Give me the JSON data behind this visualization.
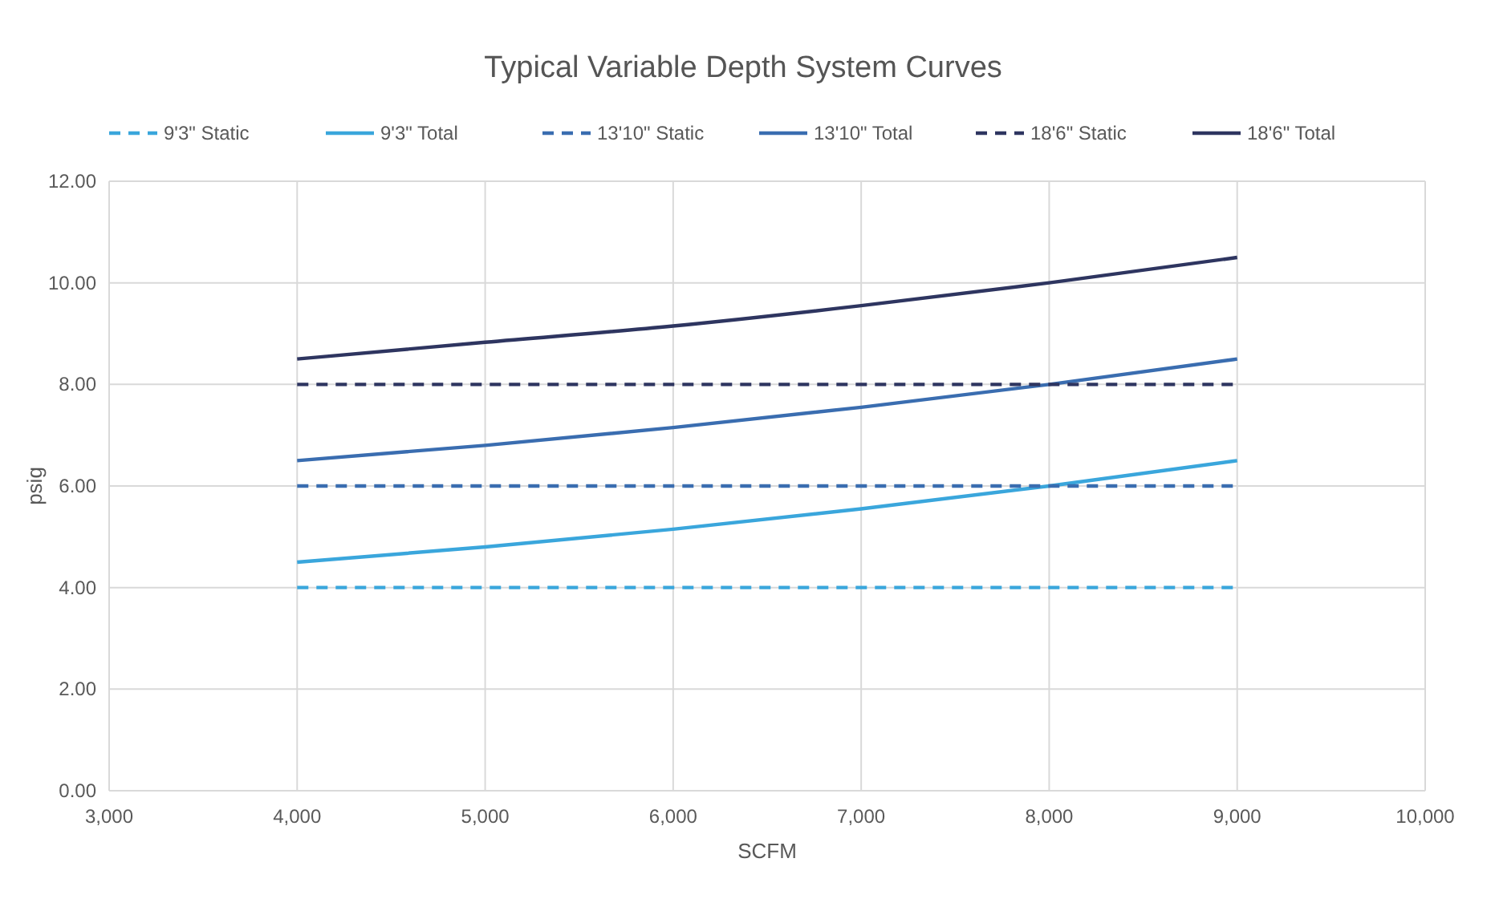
{
  "chart_data": {
    "type": "line",
    "title": "Typical Variable Depth System Curves",
    "xlabel": "SCFM",
    "ylabel": "psig",
    "x": [
      4000,
      5000,
      6000,
      7000,
      8000,
      9000
    ],
    "series": [
      {
        "name": "9'3\" Static",
        "color": "#3aa6dc",
        "line_style": "dashed",
        "values": [
          4,
          4,
          4,
          4,
          4,
          4
        ]
      },
      {
        "name": "9'3\" Total",
        "color": "#3aa6dc",
        "line_style": "solid",
        "values": [
          4.5,
          4.8,
          5.15,
          5.55,
          6,
          6.5
        ]
      },
      {
        "name": "13'10\" Static",
        "color": "#3a6db0",
        "line_style": "dashed",
        "values": [
          6,
          6,
          6,
          6,
          6,
          6
        ]
      },
      {
        "name": "13'10\" Total",
        "color": "#3a6db0",
        "line_style": "solid",
        "values": [
          6.5,
          6.8,
          7.15,
          7.55,
          8,
          8.5
        ]
      },
      {
        "name": "18'6\" Static",
        "color": "#2e3560",
        "line_style": "dashed",
        "values": [
          8,
          8,
          8,
          8,
          8,
          8
        ]
      },
      {
        "name": "18'6\" Total",
        "color": "#2e3560",
        "line_style": "solid",
        "values": [
          8.5,
          8.83,
          9.15,
          9.55,
          10,
          10.5
        ]
      }
    ],
    "xlim": [
      3000,
      10000
    ],
    "xticks": [
      {
        "value": 3000,
        "label": "3,000"
      },
      {
        "value": 4000,
        "label": "4,000"
      },
      {
        "value": 5000,
        "label": "5,000"
      },
      {
        "value": 6000,
        "label": "6,000"
      },
      {
        "value": 7000,
        "label": "7,000"
      },
      {
        "value": 8000,
        "label": "8,000"
      },
      {
        "value": 9000,
        "label": "9,000"
      },
      {
        "value": 10000,
        "label": "10,000"
      }
    ],
    "ylim": [
      0,
      12
    ],
    "yticks": [
      {
        "value": 0,
        "label": "0.00"
      },
      {
        "value": 2,
        "label": "2.00"
      },
      {
        "value": 4,
        "label": "4.00"
      },
      {
        "value": 6,
        "label": "6.00"
      },
      {
        "value": 8,
        "label": "8.00"
      },
      {
        "value": 10,
        "label": "10.00"
      },
      {
        "value": 12,
        "label": "12.00"
      }
    ],
    "grid": true,
    "legend": "top",
    "marker": "none"
  }
}
